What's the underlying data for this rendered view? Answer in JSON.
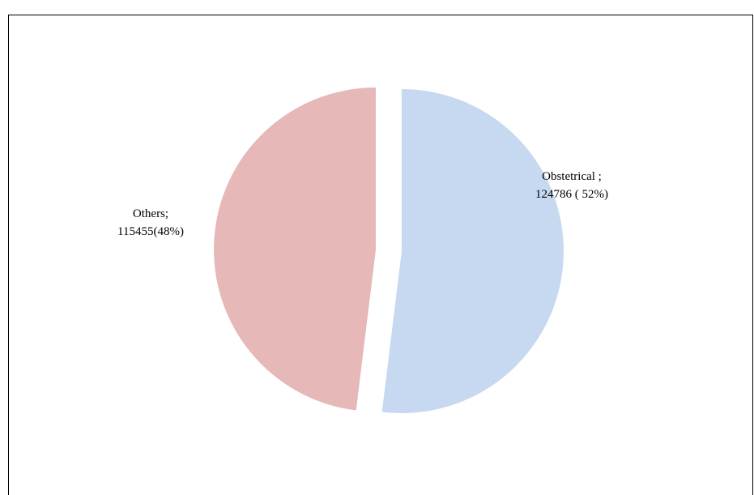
{
  "chart_data": {
    "type": "pie",
    "categories": [
      "Obstetrical ;",
      "Others;"
    ],
    "values": [
      124786,
      115455
    ],
    "value_labels": [
      "124786 ( 52%)",
      "115455(48%)"
    ],
    "colors": [
      "#c6d9f0",
      "#e6b8b7"
    ]
  }
}
